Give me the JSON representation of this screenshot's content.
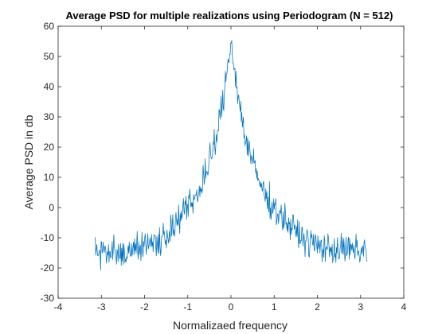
{
  "chart_data": {
    "type": "line",
    "title": "Average PSD for multiple realizations using Periodogram (N = 512)",
    "xlabel": "Normalizaed frequency",
    "ylabel": "Average PSD in db",
    "xlim": [
      -4,
      4
    ],
    "ylim": [
      -30,
      60
    ],
    "xticks": [
      -4,
      -3,
      -2,
      -1,
      0,
      1,
      2,
      3,
      4
    ],
    "yticks": [
      -30,
      -20,
      -10,
      0,
      10,
      20,
      30,
      40,
      50,
      60
    ],
    "grid": false,
    "legend": "none",
    "series": [
      {
        "color": "#0072BD",
        "x": [
          -3.1416,
          -3.0,
          -2.75,
          -2.5,
          -2.25,
          -2.0,
          -1.75,
          -1.5,
          -1.25,
          -1.0,
          -0.75,
          -0.5,
          -0.35,
          -0.25,
          -0.15,
          -0.08,
          0.0,
          0.08,
          0.15,
          0.25,
          0.35,
          0.5,
          0.75,
          1.0,
          1.25,
          1.5,
          1.75,
          2.0,
          2.25,
          2.5,
          2.75,
          3.0,
          3.1416
        ],
        "y": [
          -14,
          -14.5,
          -14,
          -14,
          -13.5,
          -13,
          -11.5,
          -9,
          -5,
          0,
          5,
          15,
          22,
          30,
          38,
          47,
          55,
          47,
          38,
          30,
          22,
          15,
          5,
          0,
          -4,
          -8,
          -11,
          -12.5,
          -13.5,
          -14,
          -14,
          -14.5,
          -14
        ],
        "noise_amplitude_db": 3.5
      }
    ]
  }
}
